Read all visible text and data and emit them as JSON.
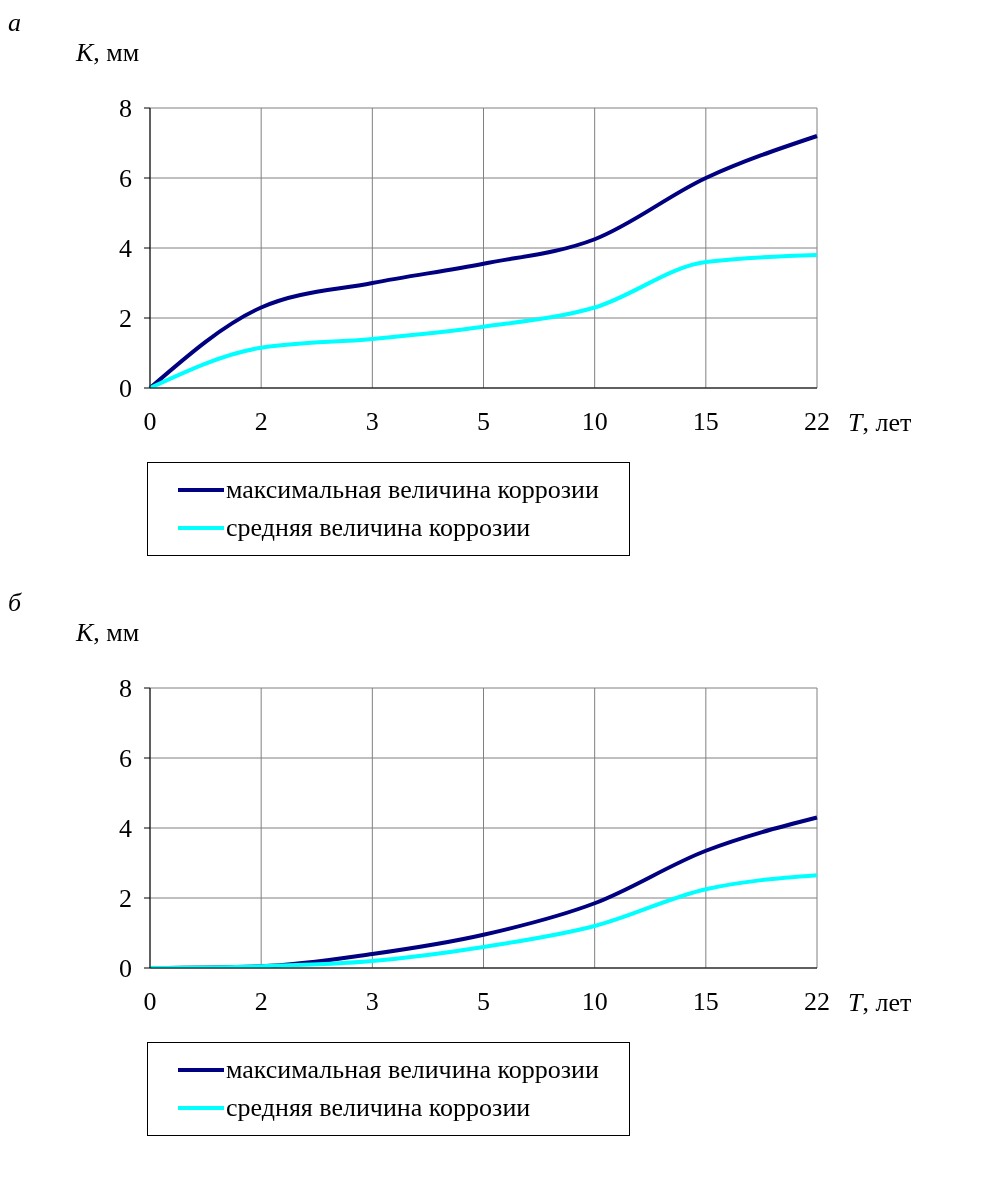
{
  "chart_data": [
    {
      "type": "line",
      "annotations": [
        "а"
      ],
      "ylabel": "K, мм",
      "xlabel": "T, лет",
      "categories": [
        "0",
        "2",
        "3",
        "5",
        "10",
        "15",
        "22"
      ],
      "ylim": [
        0,
        8
      ],
      "yticks": [
        0,
        2,
        4,
        6,
        8
      ],
      "grid": true,
      "legend": "bottom",
      "marker": "none",
      "line_style": "solid",
      "series": [
        {
          "name": "максимальная величина коррозии",
          "color": "#000080",
          "values": [
            0,
            2.3,
            3.0,
            3.55,
            4.25,
            6.0,
            7.2
          ]
        },
        {
          "name": "средняя величина коррозии",
          "color": "#00ffff",
          "values": [
            0,
            1.15,
            1.4,
            1.75,
            2.3,
            3.6,
            3.8
          ]
        }
      ]
    },
    {
      "type": "line",
      "annotations": [
        "б"
      ],
      "ylabel": "K, мм",
      "xlabel": "T, лет",
      "categories": [
        "0",
        "2",
        "3",
        "5",
        "10",
        "15",
        "22"
      ],
      "ylim": [
        0,
        8
      ],
      "yticks": [
        0,
        2,
        4,
        6,
        8
      ],
      "grid": true,
      "legend": "bottom",
      "marker": "none",
      "line_style": "solid",
      "series": [
        {
          "name": "максимальная величина коррозии",
          "color": "#000080",
          "values": [
            0,
            0.05,
            0.4,
            0.95,
            1.85,
            3.35,
            4.3
          ]
        },
        {
          "name": "средняя величина коррозии",
          "color": "#00ffff",
          "values": [
            0,
            0.05,
            0.2,
            0.6,
            1.2,
            2.25,
            2.65
          ]
        }
      ]
    }
  ]
}
